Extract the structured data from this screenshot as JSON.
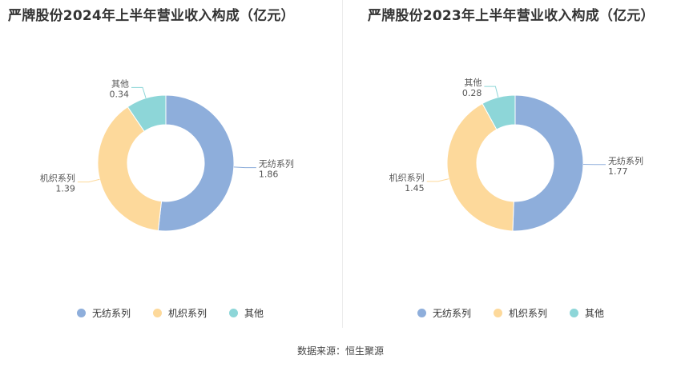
{
  "colors": {
    "wufang": "#8eaedb",
    "jizhi": "#fdd99b",
    "other": "#8dd6d8"
  },
  "source": "数据来源：恒生聚源",
  "chart_data": [
    {
      "type": "pie",
      "title": "严牌股份2024年上半年营业收入构成（亿元）",
      "categories": [
        "无纺系列",
        "机织系列",
        "其他"
      ],
      "values": [
        1.86,
        1.39,
        0.34
      ],
      "value_labels": [
        "1.86",
        "1.39",
        "0.34"
      ],
      "legend_position": "bottom"
    },
    {
      "type": "pie",
      "title": "严牌股份2023年上半年营业收入构成（亿元）",
      "categories": [
        "无纺系列",
        "机织系列",
        "其他"
      ],
      "values": [
        1.77,
        1.45,
        0.28
      ],
      "value_labels": [
        "1.77",
        "1.45",
        "0.28"
      ],
      "legend_position": "bottom"
    }
  ]
}
